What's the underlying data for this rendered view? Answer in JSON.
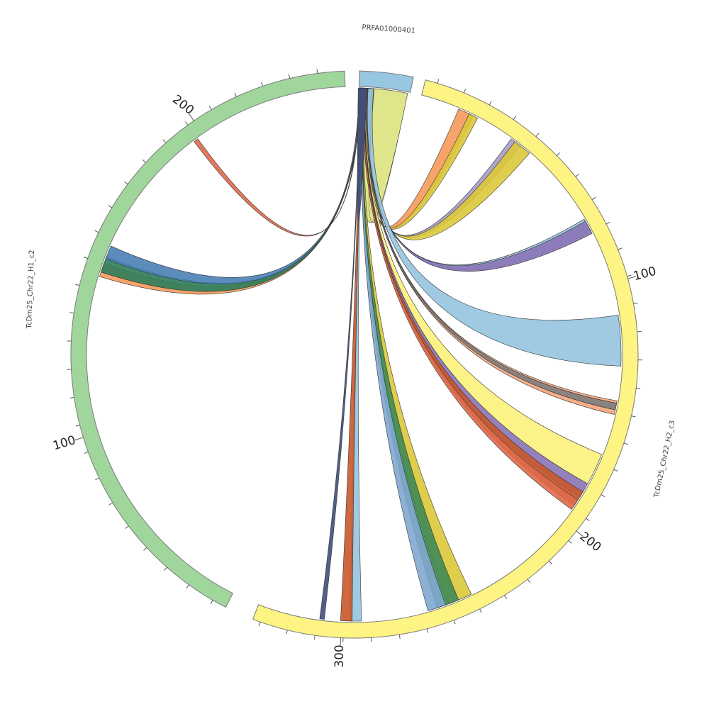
{
  "diagram": {
    "type": "chord",
    "segments": [
      {
        "id": "pr",
        "name": "PRFA01000401",
        "color": "#97c6e0"
      },
      {
        "id": "h2",
        "name": "TcDm25_Chr22_H2_c3",
        "color": "#fdf484"
      },
      {
        "id": "h1",
        "name": "TcDm25_Chr22_H1_c2",
        "color": "#a0d69c"
      }
    ],
    "tick_labels": [
      {
        "segment": "h2",
        "value": "100"
      },
      {
        "segment": "h2",
        "value": "200"
      },
      {
        "segment": "h2",
        "value": "300"
      },
      {
        "segment": "h1",
        "value": "100"
      },
      {
        "segment": "h1",
        "value": "200"
      }
    ],
    "ribbon_colors": {
      "lightblue": "#95c4df",
      "orange": "#f59a5a",
      "gold": "#dcc93a",
      "purple": "#8a74b6",
      "gray": "#7d7d7d",
      "salmon": "#f6a67c",
      "yellow": "#fbf27a",
      "green": "#3f8a55",
      "darkgreen": "#2e7d5a",
      "rust": "#c9582b",
      "navy": "#3f4f7a",
      "khaki": "#dbe27e",
      "blue": "#4a7fb5",
      "steel": "#7fa9cf",
      "lavender": "#a99cc9",
      "red": "#e06a4a",
      "olive": "#a8b03a",
      "teal": "#4f9a8a"
    }
  }
}
